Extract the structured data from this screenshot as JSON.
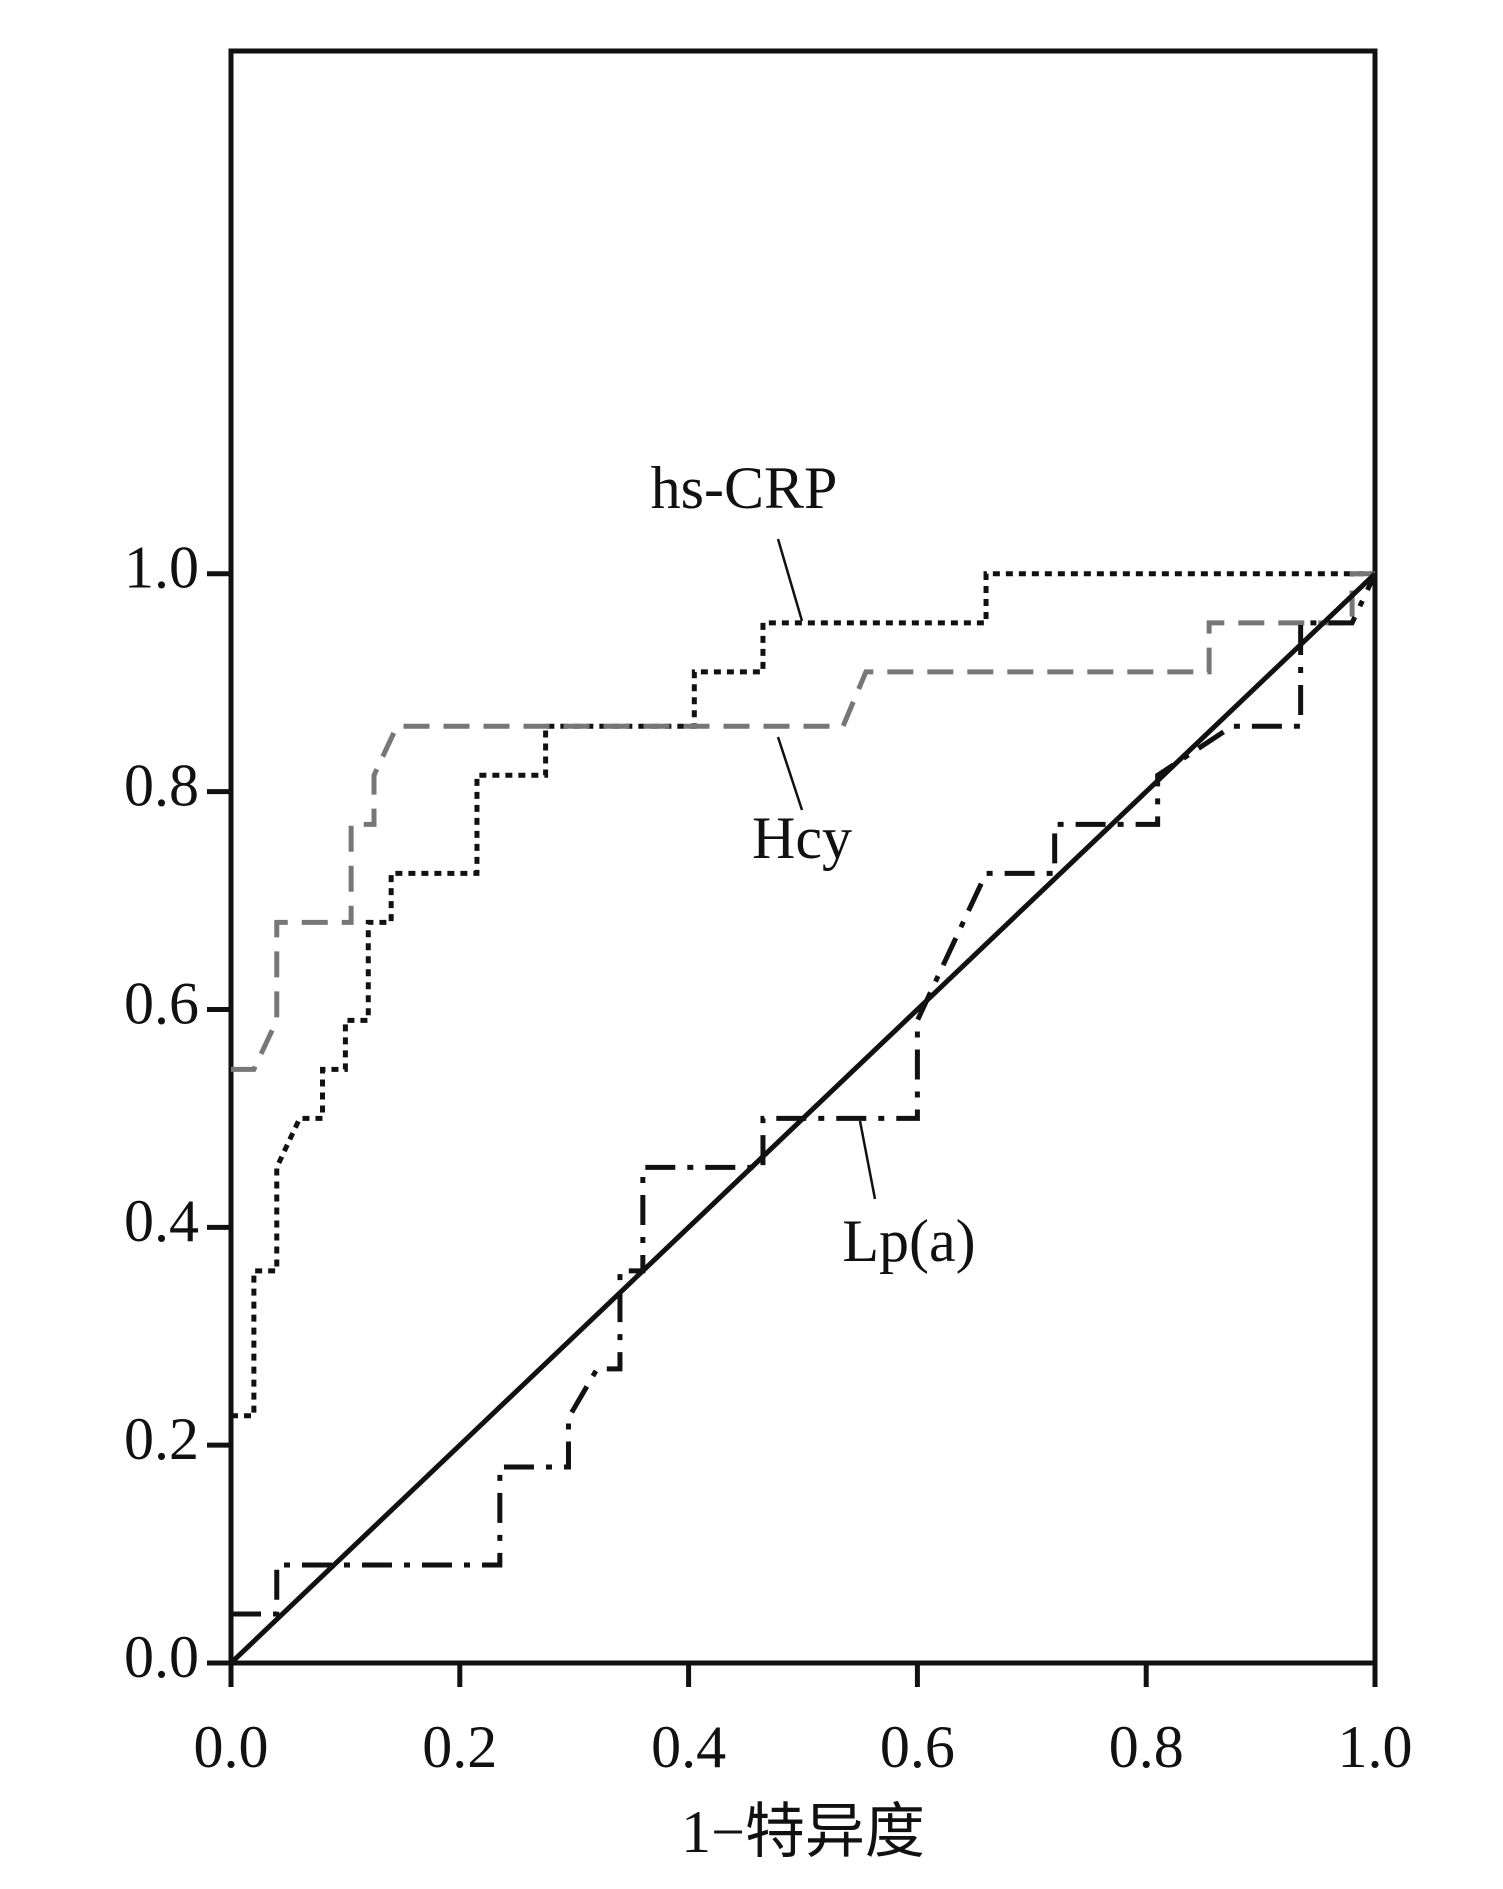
{
  "chart_data": {
    "type": "line",
    "xlabel": "1−特异度",
    "xlim": [
      0,
      1
    ],
    "ylim": [
      0,
      1.48
    ],
    "xticks": [
      {
        "value": 0,
        "label": "0.0"
      },
      0.2,
      0.4,
      0.6,
      0.8,
      {
        "value": 1,
        "label": "1.0"
      }
    ],
    "yticks": [
      {
        "value": 0,
        "label": "0.0"
      },
      0.2,
      0.4,
      0.6,
      0.8,
      {
        "value": 1,
        "label": "1.0"
      }
    ],
    "series": [
      {
        "name": "hs-CRP",
        "color": "#111111",
        "dash": "dotted",
        "x": [
          0,
          0.02,
          0.02,
          0.04,
          0.04,
          0.06,
          0.08,
          0.08,
          0.1,
          0.1,
          0.12,
          0.12,
          0.14,
          0.14,
          0.215,
          0.215,
          0.275,
          0.275,
          0.405,
          0.405,
          0.465,
          0.465,
          0.66,
          0.66,
          1
        ],
        "values": [
          0.227,
          0.227,
          0.36,
          0.36,
          0.455,
          0.5,
          0.5,
          0.545,
          0.545,
          0.59,
          0.59,
          0.68,
          0.68,
          0.725,
          0.725,
          0.815,
          0.815,
          0.86,
          0.86,
          0.91,
          0.91,
          0.955,
          0.955,
          1,
          1
        ]
      },
      {
        "name": "Hcy",
        "color": "#777777",
        "dash": "dashed",
        "x": [
          0,
          0.02,
          0.04,
          0.04,
          0.105,
          0.105,
          0.125,
          0.125,
          0.145,
          0.535,
          0.555,
          0.855,
          0.855,
          0.98,
          0.98,
          1
        ],
        "values": [
          0.545,
          0.545,
          0.59,
          0.68,
          0.68,
          0.77,
          0.77,
          0.815,
          0.86,
          0.86,
          0.91,
          0.91,
          0.955,
          0.955,
          1,
          1
        ]
      },
      {
        "name": "Lp(a)",
        "color": "#111111",
        "dash": "dashdot",
        "x": [
          0,
          0.04,
          0.04,
          0.235,
          0.235,
          0.295,
          0.295,
          0.32,
          0.34,
          0.34,
          0.36,
          0.36,
          0.465,
          0.465,
          0.6,
          0.6,
          0.62,
          0.64,
          0.66,
          0.72,
          0.72,
          0.81,
          0.81,
          0.875,
          0.935,
          0.935,
          0.98,
          1
        ],
        "values": [
          0.045,
          0.045,
          0.09,
          0.09,
          0.18,
          0.18,
          0.225,
          0.27,
          0.27,
          0.36,
          0.36,
          0.455,
          0.455,
          0.5,
          0.5,
          0.59,
          0.635,
          0.68,
          0.725,
          0.725,
          0.77,
          0.77,
          0.815,
          0.86,
          0.86,
          0.955,
          0.955,
          1
        ]
      },
      {
        "color": "#111111",
        "dash": "solid",
        "x": [
          0,
          1
        ],
        "values": [
          0,
          1
        ]
      }
    ]
  }
}
